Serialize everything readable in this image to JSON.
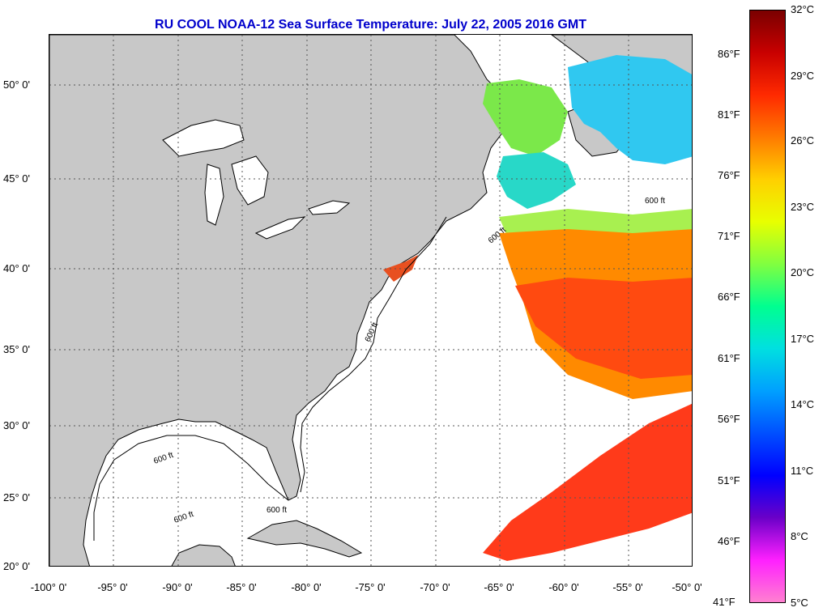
{
  "title": "RU COOL  NOAA-12  Sea Surface Temperature:  July 22, 2005 2016 GMT",
  "map": {
    "lon_range": [
      -100,
      -50
    ],
    "lat_range": [
      20,
      52.5
    ],
    "lat_labels": [
      "50° 0'",
      "45° 0'",
      "40° 0'",
      "35° 0'",
      "30° 0'",
      "25° 0'",
      "20° 0'"
    ],
    "lon_labels": [
      "-100° 0'",
      "-95° 0'",
      "-90° 0'",
      "-85° 0'",
      "-80° 0'",
      "-75° 0'",
      "-70° 0'",
      "-65° 0'",
      "-60° 0'",
      "-55° 0'",
      "-50° 0'"
    ],
    "bathymetry_label": "600 ft",
    "land_color": "#c8c8c8",
    "cloud_color": "#ffffff"
  },
  "colorbar": {
    "fahrenheit_labels": [
      "86°F",
      "81°F",
      "76°F",
      "71°F",
      "66°F",
      "61°F",
      "56°F",
      "51°F",
      "46°F",
      "41°F"
    ],
    "celsius_labels": [
      "32°C",
      "29°C",
      "26°C",
      "23°C",
      "20°C",
      "17°C",
      "14°C",
      "11°C",
      "8°C",
      "5°C"
    ],
    "colors": [
      "#7a0000",
      "#c80000",
      "#ff2a00",
      "#ff7a00",
      "#ffd000",
      "#e8ff00",
      "#80ff40",
      "#00ff90",
      "#00e0e0",
      "#00a0ff",
      "#0050ff",
      "#0000ff",
      "#6a00c8",
      "#ff20ff",
      "#ff80d0"
    ]
  }
}
